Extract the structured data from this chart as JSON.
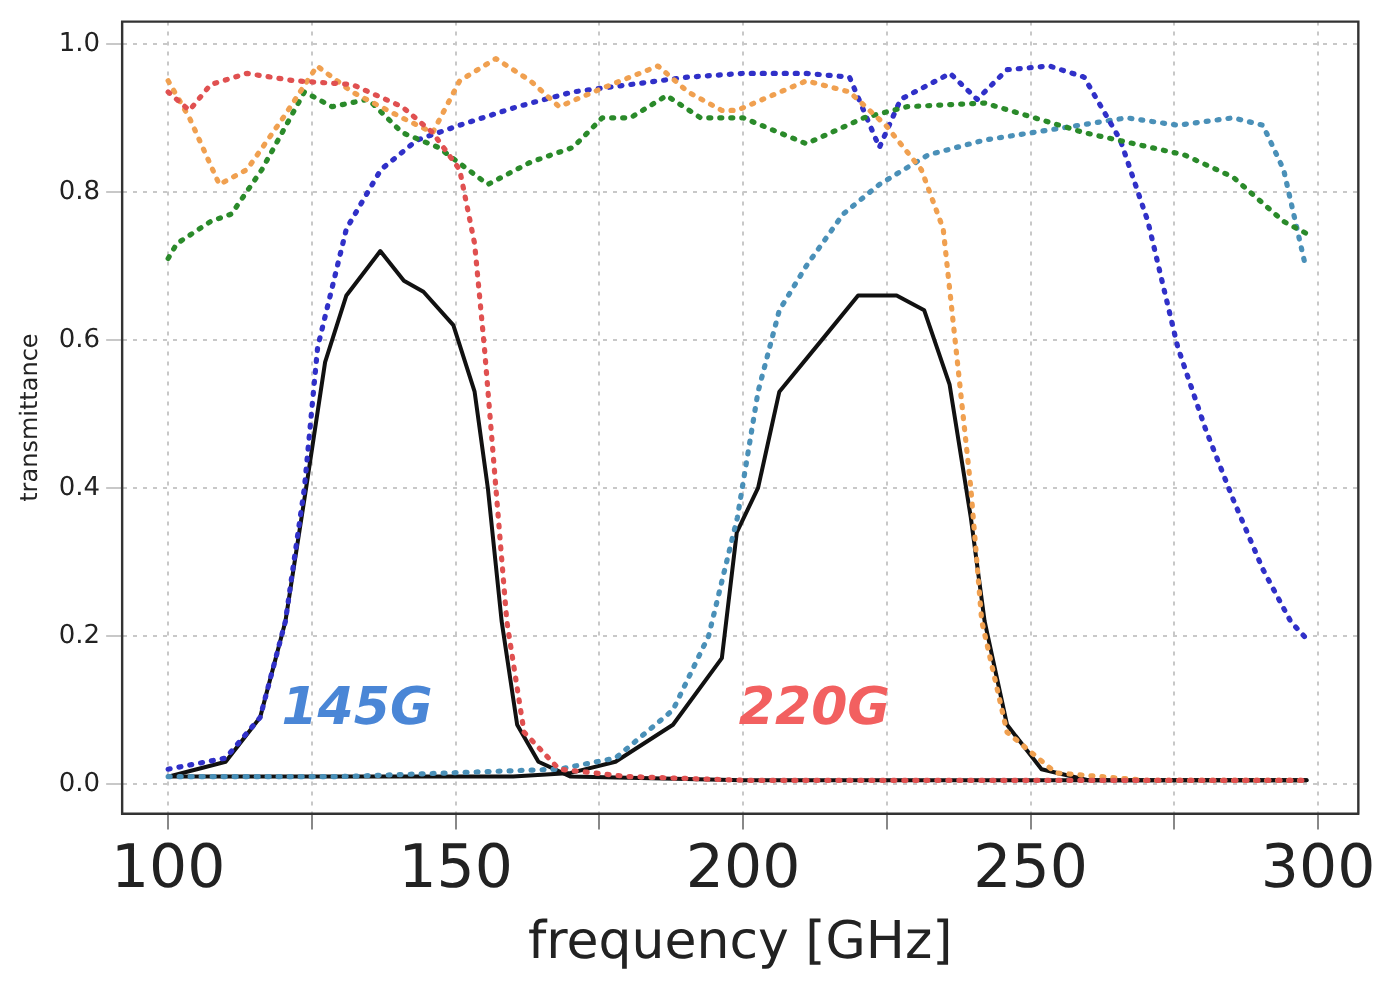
{
  "chart_data": {
    "type": "line",
    "xlabel": "frequency [GHz]",
    "ylabel": "transmittance",
    "xlim": [
      92,
      307
    ],
    "ylim": [
      -0.04,
      1.03
    ],
    "xticks": [
      100,
      {
        "value": 125,
        "label": null
      },
      150,
      {
        "value": 175,
        "label": null
      },
      200,
      {
        "value": 225,
        "label": null
      },
      250,
      {
        "value": 275,
        "label": null
      },
      300
    ],
    "yticks": [
      {
        "value": 0,
        "label": "0.0"
      },
      {
        "value": 0.2,
        "label": "0.2"
      },
      {
        "value": 0.4,
        "label": "0.4"
      },
      {
        "value": 0.6,
        "label": "0.6"
      },
      {
        "value": 0.8,
        "label": "0.8"
      },
      {
        "value": 1,
        "label": "1.0"
      }
    ],
    "grid": true,
    "legend": false,
    "marker": "none",
    "annotations": [
      "145G",
      "220G"
    ],
    "series": [
      {
        "color": "#e05050",
        "line_style": "dotted",
        "x": [
          100,
          103.7,
          107.4,
          113.7,
          122,
          132,
          140.7,
          146,
          150.7,
          153.3,
          155,
          157,
          158.9,
          161.9,
          168,
          180,
          200,
          250,
          298
        ],
        "values": [
          0.935,
          0.91,
          0.945,
          0.96,
          0.95,
          0.945,
          0.915,
          0.88,
          0.83,
          0.73,
          0.59,
          0.4,
          0.22,
          0.07,
          0.02,
          0.01,
          0.005,
          0.005,
          0.005
        ]
      },
      {
        "color": "#f0a050",
        "line_style": "dotted",
        "x": [
          100,
          103.7,
          108.9,
          113.7,
          120,
          125.9,
          132,
          140.7,
          146,
          150.7,
          157,
          163,
          168,
          175.5,
          185.2,
          190.4,
          196.3,
          198.9,
          211,
          218.5,
          224.8,
          231,
          234.8,
          237,
          239.6,
          241.5,
          245.9,
          254.4,
          270,
          297
        ],
        "values": [
          0.95,
          0.9,
          0.81,
          0.83,
          0.9,
          0.97,
          0.935,
          0.9,
          0.88,
          0.95,
          0.98,
          0.95,
          0.915,
          0.94,
          0.97,
          0.935,
          0.91,
          0.91,
          0.95,
          0.935,
          0.89,
          0.83,
          0.75,
          0.59,
          0.4,
          0.22,
          0.07,
          0.015,
          0.005,
          0.005
        ]
      },
      {
        "color": "#2a8a2a",
        "line_style": "dotted",
        "x": [
          100,
          101.5,
          107.4,
          111,
          116.3,
          123.7,
          128.5,
          134.8,
          140.7,
          147,
          155.6,
          163,
          170.4,
          175.5,
          180.4,
          186.7,
          192.6,
          200,
          211,
          221,
          228.5,
          242,
          250.7,
          259.3,
          268,
          276.7,
          285.2,
          294,
          298.9
        ],
        "values": [
          0.71,
          0.73,
          0.76,
          0.77,
          0.83,
          0.935,
          0.915,
          0.925,
          0.88,
          0.86,
          0.81,
          0.84,
          0.86,
          0.9,
          0.9,
          0.93,
          0.9,
          0.9,
          0.865,
          0.9,
          0.915,
          0.92,
          0.9,
          0.88,
          0.865,
          0.85,
          0.82,
          0.76,
          0.74
        ]
      },
      {
        "color": "#3030c8",
        "line_style": "dotted",
        "x": [
          100,
          110,
          116,
          120.4,
          123.7,
          126,
          131,
          137,
          143.3,
          150.7,
          160.7,
          170.4,
          180.4,
          190.4,
          200,
          211,
          218.5,
          223.7,
          227.4,
          236,
          240.7,
          245.9,
          253.3,
          259.3,
          265.6,
          270.4,
          275.6,
          280.4,
          285.2,
          290.4,
          295.2,
          298.1
        ],
        "values": [
          0.02,
          0.035,
          0.09,
          0.22,
          0.4,
          0.59,
          0.75,
          0.83,
          0.87,
          0.89,
          0.915,
          0.935,
          0.945,
          0.955,
          0.96,
          0.96,
          0.955,
          0.86,
          0.925,
          0.96,
          0.925,
          0.965,
          0.97,
          0.955,
          0.87,
          0.76,
          0.59,
          0.48,
          0.385,
          0.29,
          0.22,
          0.195
        ]
      },
      {
        "color": "#4a90b8",
        "line_style": "dotted",
        "x": [
          100,
          130,
          168,
          177.8,
          187.8,
          194,
          199,
          202.6,
          206.3,
          211,
          217.4,
          223.7,
          232.2,
          242,
          254.4,
          266.7,
          275.6,
          285.2,
          290.4,
          294,
          297.8
        ],
        "values": [
          0.01,
          0.01,
          0.02,
          0.035,
          0.1,
          0.2,
          0.36,
          0.53,
          0.64,
          0.7,
          0.77,
          0.81,
          0.85,
          0.87,
          0.885,
          0.9,
          0.89,
          0.9,
          0.89,
          0.83,
          0.7
        ]
      },
      {
        "color": "#111111",
        "line_style": "solid",
        "x": [
          100,
          105,
          110,
          116,
          120.4,
          124,
          127.3,
          131,
          136.9,
          141,
          144.4,
          149.6,
          153.3,
          155.6,
          158,
          160.7,
          164.4,
          170,
          200,
          250,
          298
        ],
        "values": [
          0.01,
          0.02,
          0.03,
          0.09,
          0.22,
          0.4,
          0.57,
          0.66,
          0.72,
          0.68,
          0.665,
          0.62,
          0.53,
          0.4,
          0.22,
          0.08,
          0.03,
          0.01,
          0.005,
          0.005,
          0.005
        ]
      },
      {
        "color": "#111111",
        "line_style": "solid",
        "x": [
          100,
          130,
          160,
          170,
          177.8,
          187.8,
          196.3,
          198.9,
          202.6,
          206.3,
          213.7,
          220,
          226.7,
          231.5,
          235.9,
          239.6,
          242,
          245.9,
          251.9,
          260,
          298
        ],
        "values": [
          0.01,
          0.01,
          0.01,
          0.015,
          0.03,
          0.08,
          0.17,
          0.34,
          0.4,
          0.53,
          0.6,
          0.66,
          0.66,
          0.64,
          0.54,
          0.36,
          0.22,
          0.08,
          0.02,
          0.005,
          0.005
        ]
      }
    ]
  }
}
